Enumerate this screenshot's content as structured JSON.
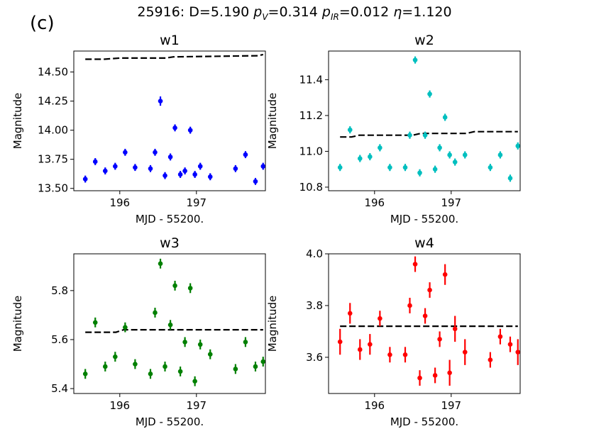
{
  "figure": {
    "panel_label": "(c)",
    "title": {
      "object": "25916:",
      "D_label": "D",
      "D_value": "5.190",
      "pv_sym": "p",
      "pv_sub": "V",
      "pv_value": "0.314",
      "pir_sym": "p",
      "pir_sub": "IR",
      "pir_value": "0.012",
      "eta_sym": "η",
      "eta_value": "1.120"
    }
  },
  "chart_data": [
    {
      "type": "scatter",
      "title": "w1",
      "xlabel": "MJD - 55200.",
      "ylabel": "Magnitude",
      "color": "#0000ff",
      "xlim": [
        195.4,
        197.9
      ],
      "ylim": [
        13.48,
        14.68
      ],
      "xticks": [
        196,
        197
      ],
      "yticks": [
        13.5,
        13.75,
        14.0,
        14.25,
        14.5
      ],
      "ytick_labels": [
        "13.50",
        "13.75",
        "14.00",
        "14.25",
        "14.50"
      ],
      "x": [
        195.55,
        195.68,
        195.81,
        195.94,
        196.07,
        196.2,
        196.4,
        196.46,
        196.53,
        196.59,
        196.66,
        196.72,
        196.79,
        196.85,
        196.92,
        196.98,
        197.05,
        197.18,
        197.51,
        197.64,
        197.77,
        197.87
      ],
      "y": [
        13.58,
        13.73,
        13.65,
        13.69,
        13.81,
        13.68,
        13.67,
        13.81,
        14.25,
        13.61,
        13.77,
        14.02,
        13.62,
        13.65,
        14.0,
        13.62,
        13.69,
        13.6,
        13.67,
        13.79,
        13.56,
        13.69
      ],
      "yerr": [
        0.03,
        0.03,
        0.03,
        0.03,
        0.03,
        0.03,
        0.03,
        0.03,
        0.04,
        0.03,
        0.03,
        0.03,
        0.03,
        0.03,
        0.03,
        0.03,
        0.03,
        0.03,
        0.03,
        0.03,
        0.03,
        0.03
      ],
      "model": {
        "x": [
          195.55,
          195.8,
          196.0,
          196.1,
          196.6,
          196.7,
          197.8,
          197.87
        ],
        "y": [
          14.61,
          14.61,
          14.62,
          14.62,
          14.62,
          14.63,
          14.64,
          14.65
        ]
      }
    },
    {
      "type": "scatter",
      "title": "w2",
      "xlabel": "MJD - 55200.",
      "ylabel": "Magnitude",
      "color": "#00bfbf",
      "xlim": [
        195.4,
        197.9
      ],
      "ylim": [
        10.78,
        11.56
      ],
      "xticks": [
        196,
        197
      ],
      "yticks": [
        10.8,
        11.0,
        11.2,
        11.4
      ],
      "ytick_labels": [
        "10.8",
        "11.0",
        "11.2",
        "11.4"
      ],
      "x": [
        195.55,
        195.68,
        195.81,
        195.94,
        196.07,
        196.2,
        196.4,
        196.46,
        196.53,
        196.59,
        196.66,
        196.72,
        196.79,
        196.85,
        196.92,
        196.98,
        197.05,
        197.18,
        197.51,
        197.64,
        197.77,
        197.87
      ],
      "y": [
        10.91,
        11.12,
        10.96,
        10.97,
        11.02,
        10.91,
        10.91,
        11.09,
        11.51,
        10.88,
        11.09,
        11.32,
        10.9,
        11.02,
        11.19,
        10.98,
        10.94,
        10.98,
        10.91,
        10.98,
        10.85,
        11.03
      ],
      "yerr": [
        0.02,
        0.02,
        0.02,
        0.02,
        0.02,
        0.02,
        0.02,
        0.02,
        0.02,
        0.02,
        0.02,
        0.02,
        0.02,
        0.02,
        0.02,
        0.02,
        0.02,
        0.02,
        0.02,
        0.02,
        0.02,
        0.02
      ],
      "model": {
        "x": [
          195.55,
          195.7,
          195.8,
          196.5,
          196.6,
          197.2,
          197.3,
          197.87
        ],
        "y": [
          11.08,
          11.08,
          11.09,
          11.09,
          11.1,
          11.1,
          11.11,
          11.11
        ]
      }
    },
    {
      "type": "scatter",
      "title": "w3",
      "xlabel": "MJD - 55200.",
      "ylabel": "Magnitude",
      "color": "#008000",
      "xlim": [
        195.4,
        197.9
      ],
      "ylim": [
        5.38,
        5.95
      ],
      "xticks": [
        196,
        197
      ],
      "yticks": [
        5.4,
        5.6,
        5.8
      ],
      "ytick_labels": [
        "5.4",
        "5.6",
        "5.8"
      ],
      "x": [
        195.55,
        195.68,
        195.81,
        195.94,
        196.07,
        196.2,
        196.4,
        196.46,
        196.53,
        196.59,
        196.66,
        196.72,
        196.79,
        196.85,
        196.92,
        196.98,
        197.05,
        197.18,
        197.51,
        197.64,
        197.77,
        197.87
      ],
      "y": [
        5.46,
        5.67,
        5.49,
        5.53,
        5.65,
        5.5,
        5.46,
        5.71,
        5.91,
        5.49,
        5.66,
        5.82,
        5.47,
        5.59,
        5.81,
        5.43,
        5.58,
        5.54,
        5.48,
        5.59,
        5.49,
        5.51
      ],
      "yerr": [
        0.02,
        0.02,
        0.02,
        0.02,
        0.02,
        0.02,
        0.02,
        0.02,
        0.02,
        0.02,
        0.02,
        0.02,
        0.02,
        0.02,
        0.02,
        0.02,
        0.02,
        0.02,
        0.02,
        0.02,
        0.02,
        0.02
      ],
      "model": {
        "x": [
          195.55,
          195.8,
          195.95,
          196.05,
          196.2,
          197.87
        ],
        "y": [
          5.63,
          5.63,
          5.63,
          5.64,
          5.64,
          5.64
        ]
      }
    },
    {
      "type": "scatter",
      "title": "w4",
      "xlabel": "MJD - 55200.",
      "ylabel": "Magnitude",
      "color": "#ff0000",
      "xlim": [
        195.4,
        197.9
      ],
      "ylim": [
        3.46,
        4.0
      ],
      "xticks": [
        196,
        197
      ],
      "yticks": [
        3.6,
        3.8,
        4.0
      ],
      "ytick_labels": [
        "3.6",
        "3.8",
        "4.0"
      ],
      "x": [
        195.55,
        195.68,
        195.81,
        195.94,
        196.07,
        196.2,
        196.4,
        196.46,
        196.53,
        196.59,
        196.66,
        196.72,
        196.79,
        196.85,
        196.92,
        196.98,
        197.05,
        197.18,
        197.51,
        197.64,
        197.77,
        197.87
      ],
      "y": [
        3.66,
        3.77,
        3.63,
        3.65,
        3.75,
        3.61,
        3.61,
        3.8,
        3.96,
        3.52,
        3.76,
        3.86,
        3.53,
        3.67,
        3.92,
        3.54,
        3.71,
        3.62,
        3.59,
        3.68,
        3.65,
        3.62
      ],
      "yerr": [
        0.05,
        0.04,
        0.04,
        0.04,
        0.03,
        0.03,
        0.03,
        0.03,
        0.03,
        0.03,
        0.03,
        0.03,
        0.03,
        0.03,
        0.04,
        0.05,
        0.05,
        0.05,
        0.03,
        0.03,
        0.03,
        0.05
      ],
      "model": {
        "x": [
          195.55,
          197.87
        ],
        "y": [
          3.72,
          3.72
        ]
      }
    }
  ]
}
